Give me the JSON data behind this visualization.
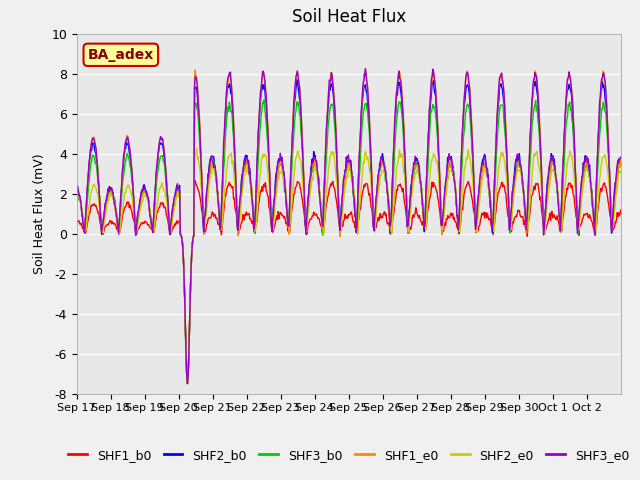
{
  "title": "Soil Heat Flux",
  "ylabel": "Soil Heat Flux (mV)",
  "ylim": [
    -8,
    10
  ],
  "yticks": [
    -8,
    -6,
    -4,
    -2,
    0,
    2,
    4,
    6,
    8,
    10
  ],
  "background_color": "#f0f0f0",
  "plot_bg_color": "#e8e8e8",
  "annotation_text": "BA_adex",
  "annotation_bg": "#ffff99",
  "annotation_border": "#cc0000",
  "annotation_text_color": "#8b0000",
  "series_colors": {
    "SHF1_b0": "#ff0000",
    "SHF2_b0": "#0000ff",
    "SHF3_b0": "#00cc00",
    "SHF1_e0": "#ff8800",
    "SHF2_e0": "#cccc00",
    "SHF3_e0": "#9900cc"
  },
  "days": 16,
  "pts_per_day": 48,
  "date_labels": [
    "Sep 17",
    "Sep 18",
    "Sep 19",
    "Sep 20",
    "Sep 21",
    "Sep 22",
    "Sep 23",
    "Sep 24",
    "Sep 25",
    "Sep 26",
    "Sep 27",
    "Sep 28",
    "Sep 29",
    "Sep 30",
    "Oct 1",
    "Oct 2"
  ],
  "legend_order": [
    "SHF1_b0",
    "SHF2_b0",
    "SHF3_b0",
    "SHF1_e0",
    "SHF2_e0",
    "SHF3_e0"
  ]
}
